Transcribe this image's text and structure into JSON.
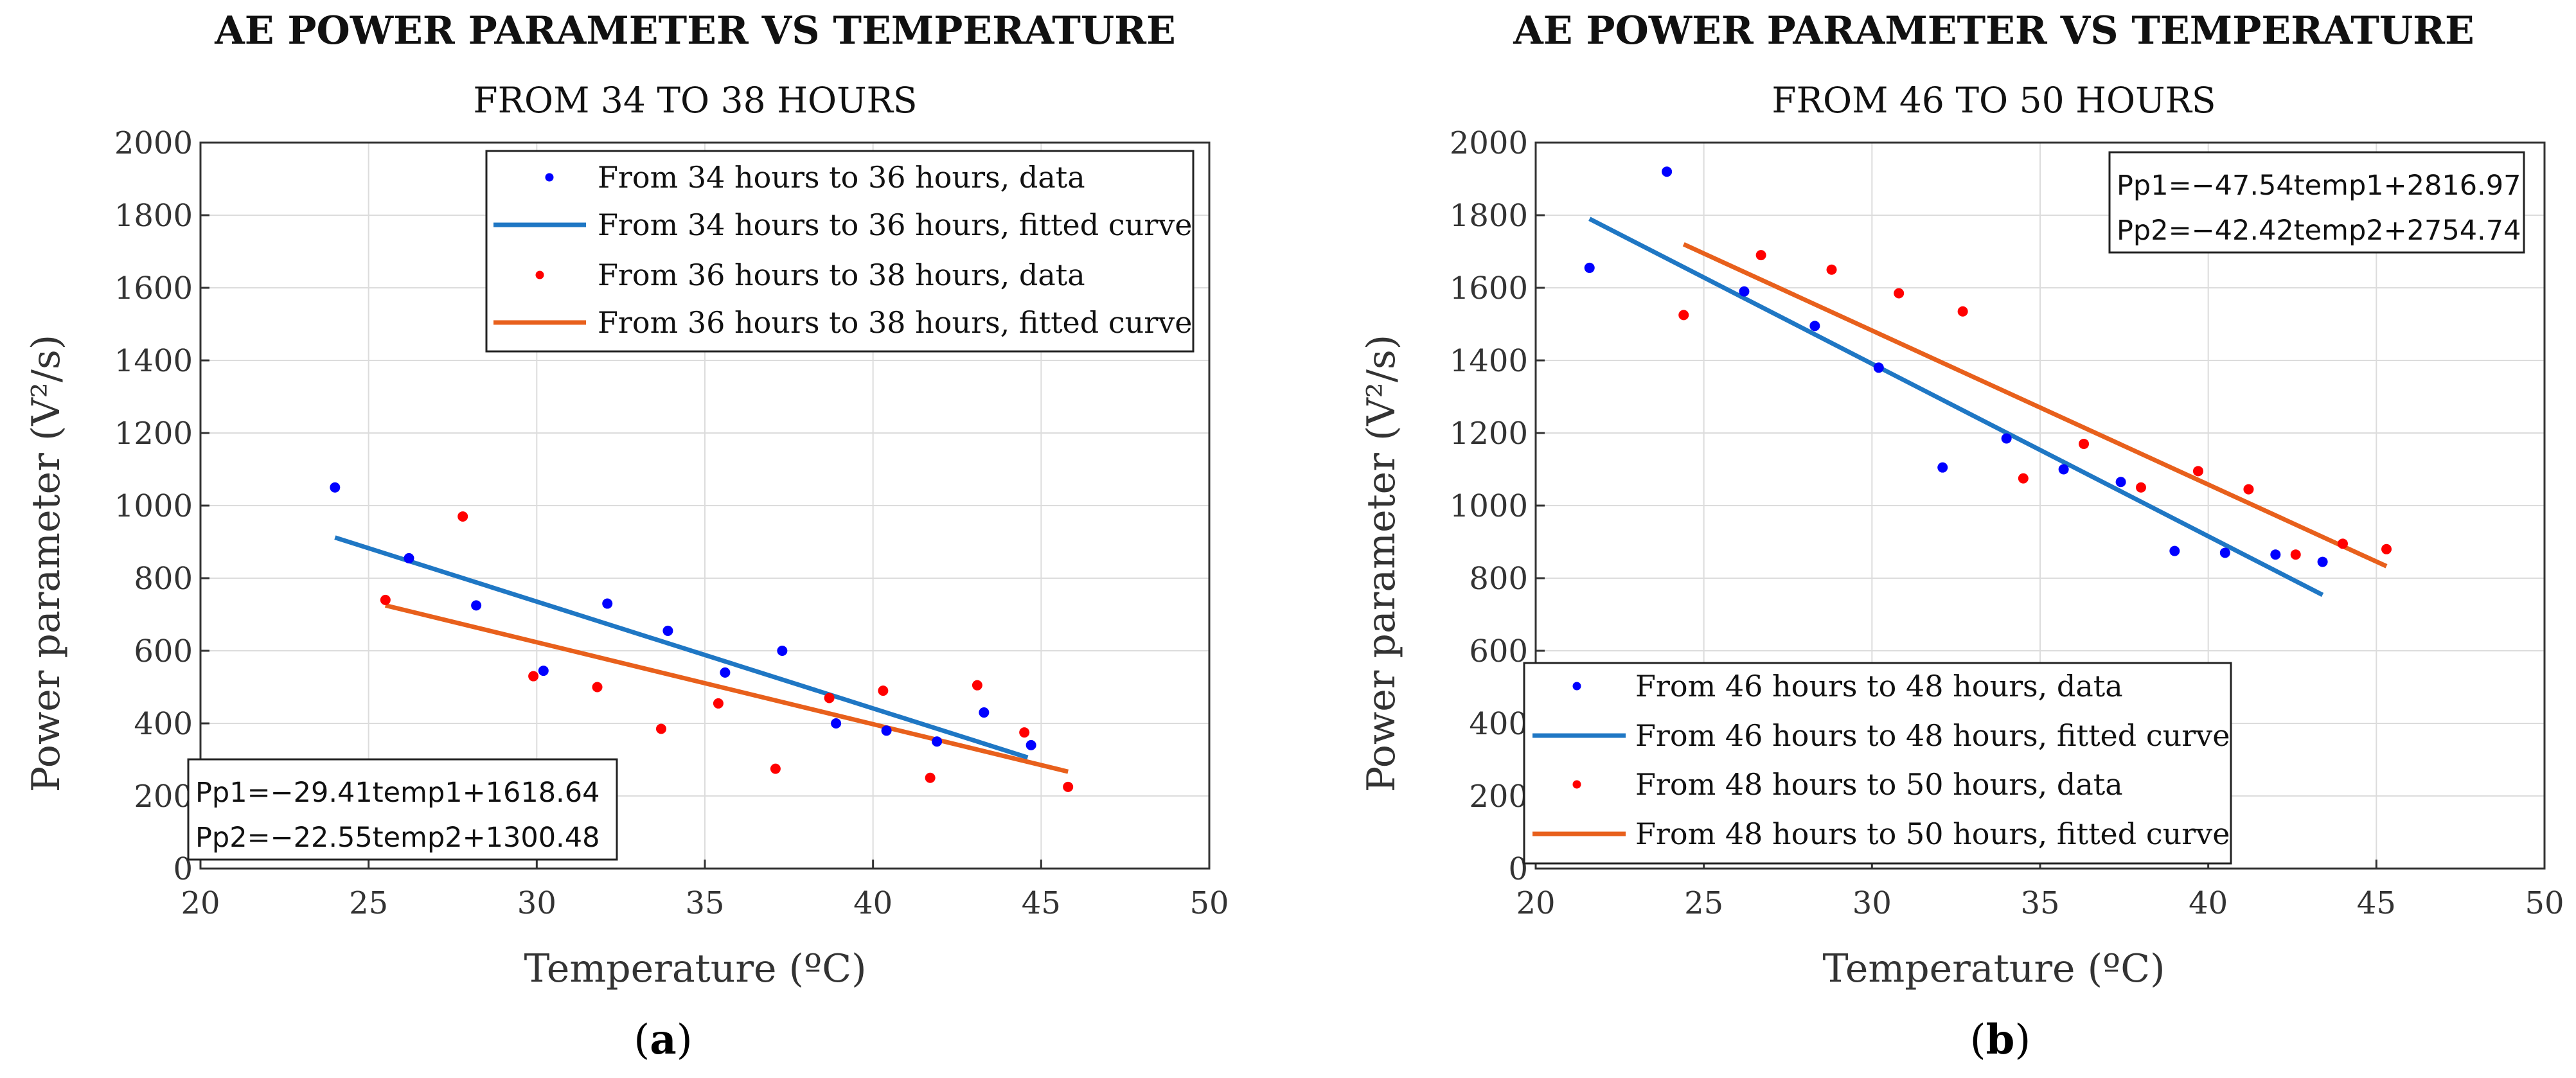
{
  "chart_data": [
    {
      "type": "scatter",
      "title": "AE POWER PARAMETER VS TEMPERATURE",
      "subtitle": "FROM 34 TO 38 HOURS",
      "xlabel": "Temperature (ºC)",
      "ylabel": "Power parameter (V²/s)",
      "xlim": [
        20,
        50
      ],
      "ylim": [
        0,
        2000
      ],
      "xticks": [
        20,
        25,
        30,
        35,
        40,
        45,
        50
      ],
      "yticks": [
        0,
        200,
        400,
        600,
        800,
        1000,
        1200,
        1400,
        1600,
        1800,
        2000
      ],
      "grid": true,
      "legend_position": "top-right",
      "series": [
        {
          "name": "From 34 hours to 36 hours, data",
          "kind": "points",
          "color": "#0000ff",
          "points": [
            [
              24.0,
              1050
            ],
            [
              26.2,
              855
            ],
            [
              28.2,
              725
            ],
            [
              30.2,
              545
            ],
            [
              32.1,
              730
            ],
            [
              33.9,
              655
            ],
            [
              35.6,
              540
            ],
            [
              37.3,
              600
            ],
            [
              38.9,
              400
            ],
            [
              40.4,
              380
            ],
            [
              41.9,
              350
            ],
            [
              43.3,
              430
            ],
            [
              44.7,
              340
            ]
          ]
        },
        {
          "name": "From 34 hours to 36 hours, fitted curve",
          "kind": "line",
          "color": "#1f77c4",
          "points": [
            [
              24.0,
              912
            ],
            [
              44.6,
              306
            ]
          ]
        },
        {
          "name": "From 36 hours to 38 hours, data",
          "kind": "points",
          "color": "#ff0000",
          "points": [
            [
              25.5,
              740
            ],
            [
              27.8,
              970
            ],
            [
              29.9,
              530
            ],
            [
              31.8,
              500
            ],
            [
              33.7,
              385
            ],
            [
              35.4,
              455
            ],
            [
              37.1,
              275
            ],
            [
              38.7,
              470
            ],
            [
              40.3,
              490
            ],
            [
              41.7,
              250
            ],
            [
              43.1,
              505
            ],
            [
              44.5,
              375
            ],
            [
              45.8,
              225
            ]
          ]
        },
        {
          "name": "From 36 hours to 38 hours, fitted curve",
          "kind": "line",
          "color": "#e8601c",
          "points": [
            [
              25.5,
              725
            ],
            [
              45.8,
              267
            ]
          ]
        }
      ],
      "equations": [
        "Pp1=−29.41temp1+1618.64",
        "Pp2=−22.55temp2+1300.48"
      ],
      "caption": "a"
    },
    {
      "type": "scatter",
      "title": "AE POWER PARAMETER VS TEMPERATURE",
      "subtitle": "FROM 46 TO 50 HOURS",
      "xlabel": "Temperature (ºC)",
      "ylabel": "Power parameter (V²/s)",
      "xlim": [
        20,
        50
      ],
      "ylim": [
        0,
        2000
      ],
      "xticks": [
        20,
        25,
        30,
        35,
        40,
        45,
        50
      ],
      "yticks": [
        0,
        200,
        400,
        600,
        800,
        1000,
        1200,
        1400,
        1600,
        1800,
        2000
      ],
      "grid": true,
      "legend_position": "bottom-left",
      "series": [
        {
          "name": "From 46 hours to 48 hours, data",
          "kind": "points",
          "color": "#0000ff",
          "points": [
            [
              21.6,
              1655
            ],
            [
              23.9,
              1920
            ],
            [
              26.2,
              1590
            ],
            [
              28.3,
              1495
            ],
            [
              30.2,
              1380
            ],
            [
              32.1,
              1105
            ],
            [
              34.0,
              1185
            ],
            [
              35.7,
              1100
            ],
            [
              37.4,
              1065
            ],
            [
              39.0,
              875
            ],
            [
              40.5,
              870
            ],
            [
              42.0,
              865
            ],
            [
              43.4,
              845
            ]
          ]
        },
        {
          "name": "From 46 hours to 48 hours, fitted curve",
          "kind": "line",
          "color": "#1f77c4",
          "points": [
            [
              21.6,
              1790
            ],
            [
              43.4,
              754
            ]
          ]
        },
        {
          "name": "From 48 hours to 50 hours, data",
          "kind": "points",
          "color": "#ff0000",
          "points": [
            [
              24.4,
              1525
            ],
            [
              26.7,
              1690
            ],
            [
              28.8,
              1650
            ],
            [
              30.8,
              1585
            ],
            [
              32.7,
              1535
            ],
            [
              34.5,
              1075
            ],
            [
              36.3,
              1170
            ],
            [
              38.0,
              1050
            ],
            [
              39.7,
              1095
            ],
            [
              41.2,
              1045
            ],
            [
              42.6,
              865
            ],
            [
              44.0,
              895
            ],
            [
              45.3,
              880
            ]
          ]
        },
        {
          "name": "From 48 hours to 50 hours, fitted curve",
          "kind": "line",
          "color": "#e8601c",
          "points": [
            [
              24.4,
              1720
            ],
            [
              45.3,
              833
            ]
          ]
        }
      ],
      "equations": [
        "Pp1=−47.54temp1+2816.97",
        "Pp2=−42.42temp2+2754.74"
      ],
      "caption": "b"
    }
  ]
}
